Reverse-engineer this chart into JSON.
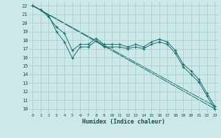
{
  "xlabel": "Humidex (Indice chaleur)",
  "background_color": "#cce8e8",
  "grid_color": "#aacfcf",
  "line_color": "#1a6b6b",
  "xlim": [
    -0.5,
    23.5
  ],
  "ylim": [
    9.5,
    22.5
  ],
  "xticks": [
    0,
    1,
    2,
    3,
    4,
    5,
    6,
    7,
    8,
    9,
    10,
    11,
    12,
    13,
    14,
    15,
    16,
    17,
    18,
    19,
    20,
    21,
    22,
    23
  ],
  "yticks": [
    10,
    11,
    12,
    13,
    14,
    15,
    16,
    17,
    18,
    19,
    20,
    21,
    22
  ],
  "series1_x": [
    0,
    1,
    2,
    3,
    4,
    5,
    6,
    7,
    8,
    9,
    10,
    11,
    12,
    13,
    14,
    15,
    16,
    17,
    18,
    19,
    20,
    21,
    22,
    23
  ],
  "series1_y": [
    22.0,
    21.5,
    20.9,
    19.0,
    17.8,
    15.9,
    17.2,
    17.2,
    17.9,
    17.2,
    17.2,
    17.2,
    17.0,
    17.2,
    17.0,
    17.5,
    17.8,
    17.5,
    16.5,
    14.9,
    14.0,
    13.1,
    11.5,
    10.0
  ],
  "series2_x": [
    0,
    1,
    2,
    3,
    4,
    5,
    6,
    7,
    8,
    9,
    10,
    11,
    12,
    13,
    14,
    15,
    16,
    17,
    18,
    19,
    20,
    21,
    22,
    23
  ],
  "series2_y": [
    22.0,
    21.5,
    20.7,
    19.5,
    18.8,
    16.8,
    17.5,
    17.5,
    18.2,
    17.5,
    17.5,
    17.5,
    17.2,
    17.5,
    17.2,
    17.8,
    18.1,
    17.8,
    16.8,
    15.2,
    14.4,
    13.4,
    11.8,
    10.3
  ],
  "series3_x": [
    0,
    23
  ],
  "series3_y": [
    22.0,
    10.0
  ],
  "series4_x": [
    0,
    23
  ],
  "series4_y": [
    22.0,
    10.3
  ]
}
